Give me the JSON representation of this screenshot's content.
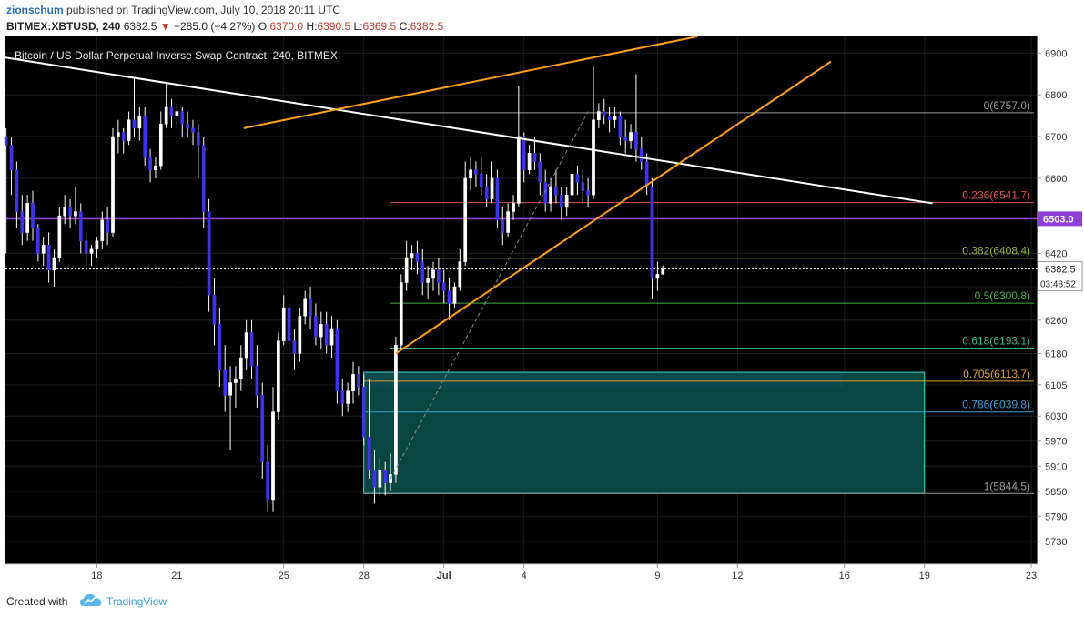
{
  "header": {
    "author": "zionschum",
    "published": "published on TradingView.com, July 10, 2018 20:11 UTC",
    "symbol": "BITMEX:XBTUSD, 240",
    "last": "6382.5",
    "change": "−285.0 (−4.27%)",
    "o_label": "O:",
    "o": "6370.0",
    "h_label": "H:",
    "h": "6390.5",
    "l_label": "L:",
    "l": "6369.5",
    "c_label": "C:",
    "c": "6382.5"
  },
  "footer": {
    "created_with": "Created with",
    "brand": "TradingView"
  },
  "colors": {
    "background": "#000000",
    "candle": "#3d35e8",
    "wick": "#ffffff",
    "trendline": "#ffffff",
    "wedge": "#ff9f1c",
    "horizontal_level": "#8e3fd6",
    "zone_fill": "#0b4a44",
    "zone_purple": "#6a3fd6"
  },
  "chart_data": {
    "type": "candlestick",
    "title": "Bitcoin / US Dollar Perpetual Inverse Swap Contract, 240, BITMEX",
    "timeframe": "240",
    "x_ticks": [
      {
        "label": "18",
        "x": 0
      },
      {
        "label": "21",
        "x": 3
      },
      {
        "label": "25",
        "x": 7
      },
      {
        "label": "28",
        "x": 10
      },
      {
        "label": "Jul",
        "x": 13
      },
      {
        "label": "4",
        "x": 16
      },
      {
        "label": "9",
        "x": 21
      },
      {
        "label": "12",
        "x": 24
      },
      {
        "label": "16",
        "x": 28
      },
      {
        "label": "19",
        "x": 31
      },
      {
        "label": "23",
        "x": 35
      }
    ],
    "x_range": [
      -3.5,
      35
    ],
    "y_range": [
      5675,
      6940
    ],
    "y_ticks": [
      6900,
      6800,
      6700,
      6600,
      6500,
      6420,
      6340,
      6260,
      6180,
      6105,
      6030,
      5970,
      5910,
      5850,
      5790,
      5730
    ],
    "price_label": {
      "value": 6382.5,
      "text": "6382.5",
      "countdown": "03:48:52"
    },
    "level_label": {
      "value": 6503.0,
      "text": "6503.0"
    },
    "fib_levels": [
      {
        "ratio": "0",
        "value": 6757.0,
        "text": "0(6757.0)",
        "color": "#9a9a9a"
      },
      {
        "ratio": "0.236",
        "value": 6541.7,
        "text": "0.236(6541.7)",
        "color": "#e05050"
      },
      {
        "ratio": "0.382",
        "value": 6408.4,
        "text": "0.382(6408.4)",
        "color": "#9ab83a"
      },
      {
        "ratio": "0.5",
        "value": 6300.8,
        "text": "0.5(6300.8)",
        "color": "#45b045"
      },
      {
        "ratio": "0.618",
        "value": 6193.1,
        "text": "0.618(6193.1)",
        "color": "#3fb58a"
      },
      {
        "ratio": "0.705",
        "value": 6113.7,
        "text": "0.705(6113.7)",
        "color": "#e0a030"
      },
      {
        "ratio": "0.786",
        "value": 6039.8,
        "text": "0.786(6039.8)",
        "color": "#3d9fd6"
      },
      {
        "ratio": "1",
        "value": 5844.5,
        "text": "1(5844.5)",
        "color": "#9a9a9a"
      }
    ],
    "ohlc": [
      [
        -3.4,
        6700,
        6720,
        6420,
        6680
      ],
      [
        -3.2,
        6680,
        6700,
        6560,
        6620
      ],
      [
        -3.0,
        6620,
        6640,
        6480,
        6520
      ],
      [
        -2.8,
        6520,
        6560,
        6440,
        6470
      ],
      [
        -2.6,
        6470,
        6560,
        6450,
        6540
      ],
      [
        -2.4,
        6540,
        6570,
        6450,
        6480
      ],
      [
        -2.2,
        6480,
        6490,
        6400,
        6420
      ],
      [
        -2.0,
        6420,
        6460,
        6390,
        6440
      ],
      [
        -1.8,
        6440,
        6470,
        6350,
        6380
      ],
      [
        -1.6,
        6380,
        6430,
        6340,
        6410
      ],
      [
        -1.4,
        6410,
        6530,
        6400,
        6510
      ],
      [
        -1.2,
        6510,
        6560,
        6490,
        6530
      ],
      [
        -1.0,
        6530,
        6550,
        6480,
        6510
      ],
      [
        -0.8,
        6510,
        6580,
        6490,
        6520
      ],
      [
        -0.6,
        6520,
        6540,
        6420,
        6450
      ],
      [
        -0.4,
        6450,
        6470,
        6390,
        6420
      ],
      [
        -0.2,
        6420,
        6440,
        6390,
        6430
      ],
      [
        0.0,
        6430,
        6460,
        6410,
        6450
      ],
      [
        0.2,
        6450,
        6520,
        6430,
        6500
      ],
      [
        0.4,
        6500,
        6530,
        6440,
        6470
      ],
      [
        0.6,
        6470,
        6720,
        6460,
        6700
      ],
      [
        0.8,
        6700,
        6740,
        6660,
        6710
      ],
      [
        1.0,
        6710,
        6720,
        6660,
        6690
      ],
      [
        1.2,
        6690,
        6760,
        6680,
        6740
      ],
      [
        1.4,
        6740,
        6840,
        6700,
        6720
      ],
      [
        1.6,
        6720,
        6770,
        6690,
        6750
      ],
      [
        1.8,
        6750,
        6770,
        6630,
        6650
      ],
      [
        2.0,
        6650,
        6670,
        6590,
        6620
      ],
      [
        2.2,
        6620,
        6650,
        6600,
        6630
      ],
      [
        2.4,
        6630,
        6760,
        6620,
        6730
      ],
      [
        2.6,
        6730,
        6830,
        6720,
        6770
      ],
      [
        2.8,
        6770,
        6790,
        6720,
        6750
      ],
      [
        3.0,
        6750,
        6780,
        6720,
        6760
      ],
      [
        3.2,
        6760,
        6770,
        6700,
        6730
      ],
      [
        3.4,
        6730,
        6760,
        6700,
        6720
      ],
      [
        3.6,
        6720,
        6740,
        6680,
        6710
      ],
      [
        3.8,
        6710,
        6730,
        6600,
        6680
      ],
      [
        4.0,
        6680,
        6700,
        6480,
        6520
      ],
      [
        4.2,
        6520,
        6550,
        6280,
        6320
      ],
      [
        4.4,
        6320,
        6360,
        6200,
        6250
      ],
      [
        4.6,
        6250,
        6290,
        6100,
        6140
      ],
      [
        4.8,
        6140,
        6200,
        6040,
        6080
      ],
      [
        5.0,
        6080,
        6150,
        5950,
        6110
      ],
      [
        5.2,
        6110,
        6150,
        6050,
        6120
      ],
      [
        5.4,
        6120,
        6200,
        6090,
        6170
      ],
      [
        5.6,
        6170,
        6260,
        6140,
        6230
      ],
      [
        5.8,
        6230,
        6260,
        6120,
        6150
      ],
      [
        6.0,
        6150,
        6200,
        6050,
        6080
      ],
      [
        6.2,
        6080,
        6110,
        5880,
        5920
      ],
      [
        6.4,
        5920,
        5960,
        5800,
        5830
      ],
      [
        6.6,
        5830,
        6100,
        5800,
        6040
      ],
      [
        6.8,
        6040,
        6230,
        6020,
        6210
      ],
      [
        7.0,
        6210,
        6320,
        6200,
        6290
      ],
      [
        7.2,
        6290,
        6300,
        6180,
        6210
      ],
      [
        7.4,
        6210,
        6240,
        6140,
        6180
      ],
      [
        7.6,
        6180,
        6290,
        6160,
        6270
      ],
      [
        7.8,
        6270,
        6330,
        6250,
        6310
      ],
      [
        8.0,
        6310,
        6340,
        6240,
        6270
      ],
      [
        8.2,
        6270,
        6300,
        6200,
        6220
      ],
      [
        8.4,
        6220,
        6280,
        6190,
        6250
      ],
      [
        8.6,
        6250,
        6280,
        6180,
        6200
      ],
      [
        8.8,
        6200,
        6270,
        6170,
        6240
      ],
      [
        9.0,
        6240,
        6260,
        6060,
        6090
      ],
      [
        9.2,
        6090,
        6120,
        6030,
        6060
      ],
      [
        9.4,
        6060,
        6110,
        6040,
        6090
      ],
      [
        9.6,
        6090,
        6160,
        6060,
        6130
      ],
      [
        9.8,
        6130,
        6150,
        6080,
        6100
      ],
      [
        10.0,
        6100,
        6130,
        5960,
        5980
      ],
      [
        10.2,
        5980,
        6120,
        5880,
        5900
      ],
      [
        10.4,
        5900,
        5950,
        5820,
        5860
      ],
      [
        10.6,
        5860,
        5930,
        5840,
        5900
      ],
      [
        10.8,
        5900,
        5920,
        5840,
        5870
      ],
      [
        11.0,
        5870,
        5940,
        5850,
        5890
      ],
      [
        11.2,
        5890,
        6220,
        5870,
        6200
      ],
      [
        11.4,
        6200,
        6370,
        6190,
        6350
      ],
      [
        11.6,
        6350,
        6450,
        6330,
        6410
      ],
      [
        11.8,
        6410,
        6440,
        6380,
        6420
      ],
      [
        12.0,
        6420,
        6450,
        6370,
        6400
      ],
      [
        12.2,
        6400,
        6430,
        6320,
        6350
      ],
      [
        12.4,
        6350,
        6390,
        6310,
        6360
      ],
      [
        12.6,
        6360,
        6400,
        6330,
        6380
      ],
      [
        12.8,
        6380,
        6410,
        6320,
        6350
      ],
      [
        13.0,
        6350,
        6380,
        6300,
        6330
      ],
      [
        13.2,
        6330,
        6360,
        6260,
        6300
      ],
      [
        13.4,
        6300,
        6350,
        6290,
        6340
      ],
      [
        13.6,
        6340,
        6430,
        6330,
        6400
      ],
      [
        13.8,
        6400,
        6640,
        6390,
        6600
      ],
      [
        14.0,
        6600,
        6650,
        6570,
        6620
      ],
      [
        14.2,
        6620,
        6640,
        6580,
        6610
      ],
      [
        14.4,
        6610,
        6650,
        6560,
        6580
      ],
      [
        14.6,
        6580,
        6610,
        6530,
        6550
      ],
      [
        14.8,
        6550,
        6640,
        6540,
        6600
      ],
      [
        15.0,
        6600,
        6620,
        6480,
        6500
      ],
      [
        15.2,
        6500,
        6530,
        6440,
        6470
      ],
      [
        15.4,
        6470,
        6540,
        6460,
        6520
      ],
      [
        15.6,
        6520,
        6560,
        6500,
        6540
      ],
      [
        15.8,
        6540,
        6820,
        6530,
        6700
      ],
      [
        16.0,
        6700,
        6710,
        6590,
        6620
      ],
      [
        16.2,
        6620,
        6680,
        6610,
        6660
      ],
      [
        16.4,
        6660,
        6700,
        6620,
        6640
      ],
      [
        16.6,
        6640,
        6660,
        6560,
        6590
      ],
      [
        16.8,
        6590,
        6620,
        6520,
        6540
      ],
      [
        17.0,
        6540,
        6600,
        6520,
        6580
      ],
      [
        17.2,
        6580,
        6620,
        6540,
        6560
      ],
      [
        17.4,
        6560,
        6580,
        6500,
        6530
      ],
      [
        17.6,
        6530,
        6580,
        6510,
        6560
      ],
      [
        17.8,
        6560,
        6640,
        6550,
        6610
      ],
      [
        18.0,
        6610,
        6630,
        6560,
        6590
      ],
      [
        18.2,
        6590,
        6620,
        6540,
        6570
      ],
      [
        18.4,
        6570,
        6600,
        6530,
        6560
      ],
      [
        18.6,
        6560,
        6870,
        6550,
        6740
      ],
      [
        18.8,
        6740,
        6780,
        6720,
        6760
      ],
      [
        19.0,
        6760,
        6790,
        6730,
        6750
      ],
      [
        19.2,
        6750,
        6770,
        6710,
        6740
      ],
      [
        19.4,
        6740,
        6770,
        6720,
        6750
      ],
      [
        19.6,
        6750,
        6760,
        6680,
        6700
      ],
      [
        19.8,
        6700,
        6740,
        6660,
        6690
      ],
      [
        20.0,
        6690,
        6730,
        6670,
        6710
      ],
      [
        20.2,
        6710,
        6850,
        6640,
        6670
      ],
      [
        20.4,
        6670,
        6700,
        6620,
        6640
      ],
      [
        20.6,
        6640,
        6660,
        6560,
        6580
      ],
      [
        20.8,
        6580,
        6600,
        6310,
        6360
      ],
      [
        21.0,
        6360,
        6400,
        6330,
        6370
      ],
      [
        21.2,
        6370,
        6391,
        6369,
        6382
      ]
    ],
    "annotations": [
      {
        "type": "trendline",
        "color": "white",
        "from": [
          -3.5,
          6890
        ],
        "to": [
          31.3,
          6540
        ]
      },
      {
        "type": "trendline",
        "color": "orange",
        "from": [
          5.5,
          6720
        ],
        "to": [
          22.5,
          6940
        ]
      },
      {
        "type": "trendline",
        "color": "orange",
        "from": [
          11.2,
          6180
        ],
        "to": [
          27.5,
          6880
        ]
      },
      {
        "type": "dashed",
        "color": "gray",
        "from": [
          11.0,
          5880
        ],
        "to": [
          18.4,
          6760
        ]
      },
      {
        "type": "zone",
        "color": "purple",
        "from_x": 10.0,
        "to_x": 27.9,
        "y_top": 6135,
        "y_bottom": 6095
      },
      {
        "type": "zone",
        "color": "teal",
        "from_x": 10.0,
        "to_x": 31.0,
        "y_top": 6135,
        "y_bottom": 5844.5
      }
    ]
  }
}
